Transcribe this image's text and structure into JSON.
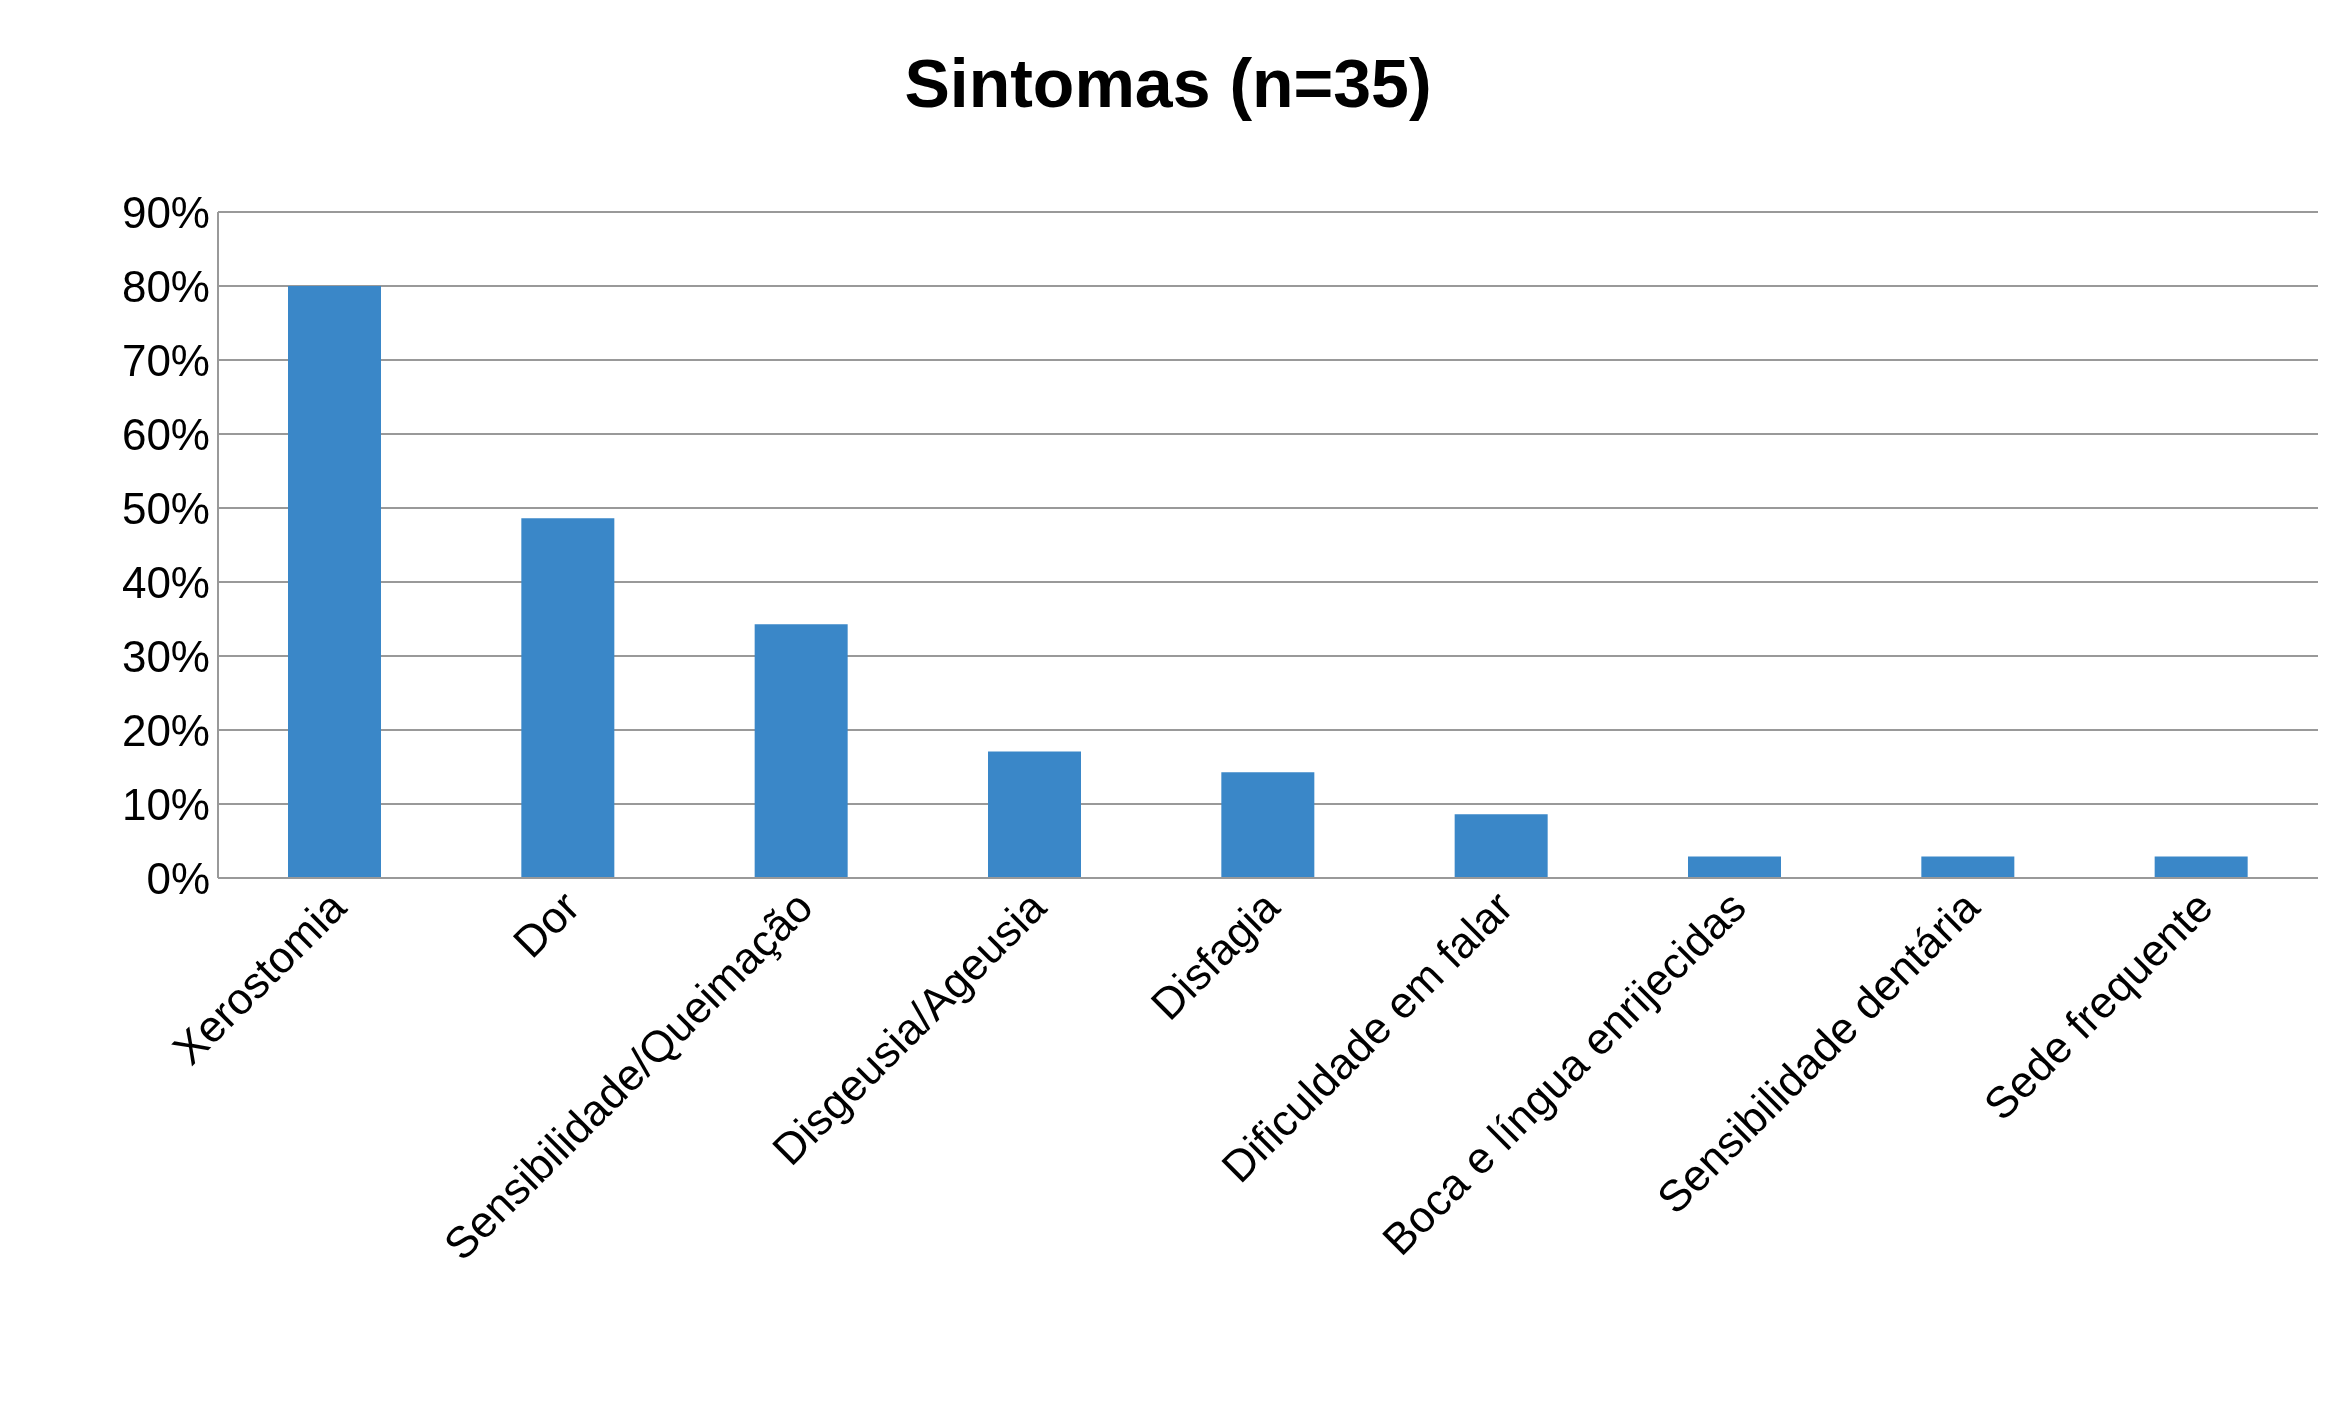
{
  "chart_data": {
    "type": "bar",
    "title": "Sintomas (n=35)",
    "categories": [
      "Xerostomia",
      "Dor",
      "Sensibilidade/Queimação",
      "Disgeusia/Ageusia",
      "Disfagia",
      "Dificuldade em falar",
      "Boca e língua enrijecidas",
      "Sensibilidade dentária",
      "Sede frequente"
    ],
    "values": [
      80,
      48.6,
      34.3,
      17.1,
      14.3,
      8.6,
      2.9,
      2.9,
      2.9
    ],
    "color": "#3a87c8",
    "ylim": [
      0,
      90
    ],
    "yticks": [
      {
        "value": 0,
        "label": "0%"
      },
      {
        "value": 10,
        "label": "10%"
      },
      {
        "value": 20,
        "label": "20%"
      },
      {
        "value": 30,
        "label": "30%"
      },
      {
        "value": 40,
        "label": "40%"
      },
      {
        "value": 50,
        "label": "50%"
      },
      {
        "value": 60,
        "label": "60%"
      },
      {
        "value": 70,
        "label": "70%"
      },
      {
        "value": 80,
        "label": "80%"
      },
      {
        "value": 90,
        "label": "90%"
      }
    ],
    "grid": "y",
    "legend": false
  }
}
